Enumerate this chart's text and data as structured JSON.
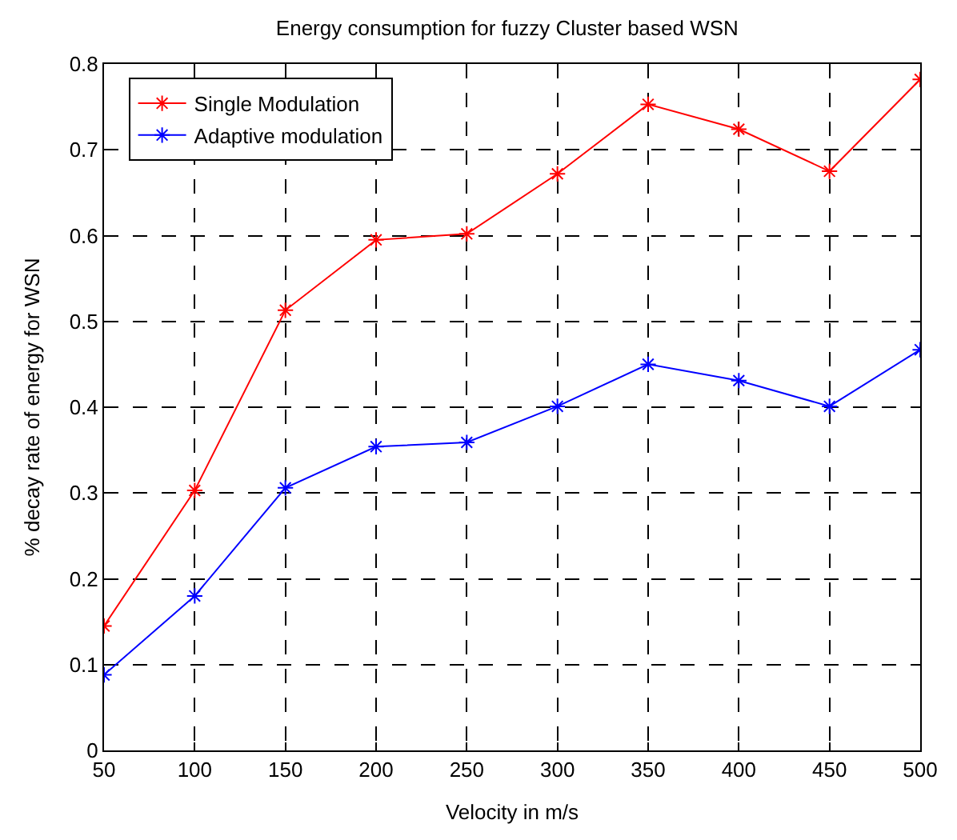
{
  "chart_data": {
    "type": "line",
    "title": "Energy consumption for fuzzy Cluster based WSN",
    "xlabel": "Velocity in m/s",
    "ylabel": "% decay rate of energy for WSN",
    "x": [
      50,
      100,
      150,
      200,
      250,
      300,
      350,
      400,
      450,
      500
    ],
    "series": [
      {
        "name": "Single Modulation",
        "color": "#ff0000",
        "values": [
          0.145,
          0.303,
          0.513,
          0.595,
          0.602,
          0.672,
          0.753,
          0.724,
          0.675,
          0.782
        ]
      },
      {
        "name": "Adaptive modulation",
        "color": "#0000ff",
        "values": [
          0.088,
          0.18,
          0.306,
          0.354,
          0.359,
          0.401,
          0.45,
          0.431,
          0.401,
          0.467
        ]
      }
    ],
    "xlim": [
      50,
      500
    ],
    "xticks": [
      50,
      100,
      150,
      200,
      250,
      300,
      350,
      400,
      450,
      500
    ],
    "ylim": [
      0,
      0.8
    ],
    "yticks": [
      0,
      0.1,
      0.2,
      0.3,
      0.4,
      0.5,
      0.6,
      0.7,
      0.8
    ],
    "grid": true,
    "legend": "top left",
    "marker": "cross",
    "line_style": "solid"
  }
}
